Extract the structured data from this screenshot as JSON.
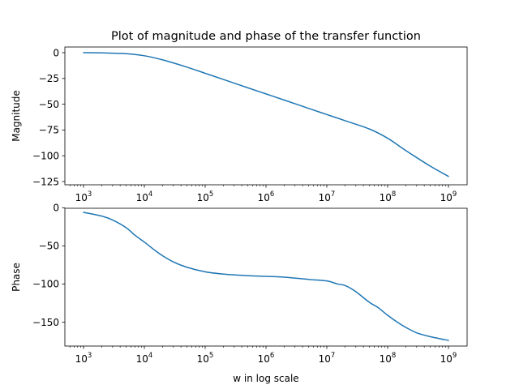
{
  "chart_data": [
    {
      "type": "line",
      "title": "Plot of magnitude and phase of the transfer function",
      "xlabel": "",
      "ylabel": "Magnitude",
      "xscale": "log",
      "xlim": [
        1000,
        1000000000
      ],
      "ylim": [
        -125,
        0
      ],
      "xticks": [
        1000,
        10000,
        100000,
        1000000,
        10000000,
        100000000,
        1000000000
      ],
      "xtick_labels": [
        {
          "base": "10",
          "exp": "3"
        },
        {
          "base": "10",
          "exp": "4"
        },
        {
          "base": "10",
          "exp": "5"
        },
        {
          "base": "10",
          "exp": "6"
        },
        {
          "base": "10",
          "exp": "7"
        },
        {
          "base": "10",
          "exp": "8"
        },
        {
          "base": "10",
          "exp": "9"
        }
      ],
      "yticks": [
        0,
        -25,
        -50,
        -75,
        -100,
        -125
      ],
      "ytick_labels": [
        "0",
        "−25",
        "−50",
        "−75",
        "−100",
        "−125"
      ],
      "grid": false,
      "color": "#1f77b4",
      "series": [
        {
          "x": [
            1000,
            2000,
            5000,
            10000,
            20000,
            50000,
            100000,
            200000,
            500000,
            1000000,
            2000000,
            5000000,
            10000000,
            20000000,
            50000000,
            100000000,
            200000000,
            500000000,
            1000000000
          ],
          "y": [
            0,
            -0.2,
            -1,
            -3,
            -7,
            -14,
            -20,
            -26,
            -34,
            -40,
            -46,
            -54,
            -60,
            -66,
            -74,
            -83,
            -95,
            -110,
            -120
          ]
        }
      ]
    },
    {
      "type": "line",
      "title": "",
      "xlabel": "w in log scale",
      "ylabel": "Phase",
      "xscale": "log",
      "xlim": [
        1000,
        1000000000
      ],
      "ylim": [
        -175,
        -6
      ],
      "xticks": [
        1000,
        10000,
        100000,
        1000000,
        10000000,
        100000000,
        1000000000
      ],
      "xtick_labels": [
        {
          "base": "10",
          "exp": "3"
        },
        {
          "base": "10",
          "exp": "4"
        },
        {
          "base": "10",
          "exp": "5"
        },
        {
          "base": "10",
          "exp": "6"
        },
        {
          "base": "10",
          "exp": "7"
        },
        {
          "base": "10",
          "exp": "8"
        },
        {
          "base": "10",
          "exp": "9"
        }
      ],
      "yticks": [
        0,
        -50,
        -100,
        -150
      ],
      "ytick_labels": [
        "0",
        "−50",
        "−100",
        "−150"
      ],
      "grid": false,
      "color": "#1f77b4",
      "series": [
        {
          "x": [
            1000,
            2000,
            3000,
            5000,
            7000,
            10000,
            15000,
            20000,
            30000,
            50000,
            100000,
            200000,
            500000,
            1000000,
            2000000,
            5000000,
            10000000,
            15000000,
            20000000,
            30000000,
            50000000,
            70000000,
            100000000,
            150000000,
            200000000,
            300000000,
            500000000,
            1000000000
          ],
          "y": [
            -6,
            -11,
            -16,
            -26,
            -36,
            -45,
            -56,
            -63,
            -71,
            -78,
            -84,
            -87,
            -89,
            -90,
            -91,
            -94,
            -96,
            -100,
            -102,
            -110,
            -124,
            -131,
            -141,
            -151,
            -157,
            -164,
            -169,
            -174
          ]
        }
      ]
    }
  ]
}
